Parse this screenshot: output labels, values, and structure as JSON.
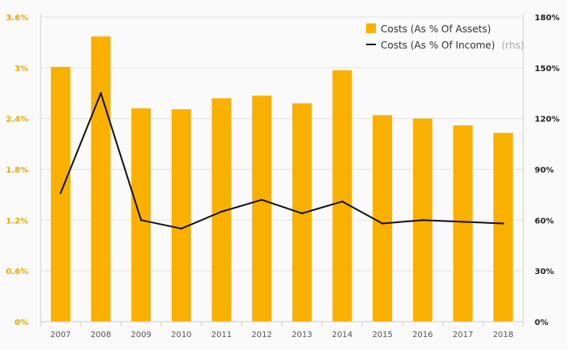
{
  "chart_data": {
    "type": "bar",
    "categories": [
      "2007",
      "2008",
      "2009",
      "2010",
      "2011",
      "2012",
      "2013",
      "2014",
      "2015",
      "2016",
      "2017",
      "2018"
    ],
    "series": [
      {
        "name": "Costs (As % Of Assets)",
        "type": "bar",
        "axis": "left",
        "color": "#f9b000",
        "values": [
          3.01,
          3.37,
          2.52,
          2.51,
          2.64,
          2.67,
          2.58,
          2.97,
          2.44,
          2.4,
          2.32,
          2.23
        ]
      },
      {
        "name": "Costs (As % Of Income)",
        "type": "line",
        "axis": "right",
        "color": "#111111",
        "values": [
          76,
          135,
          60,
          55,
          65,
          72,
          64,
          71,
          58,
          60,
          59,
          58
        ]
      }
    ],
    "left_axis": {
      "ticks": [
        "0%",
        "0.6%",
        "1.2%",
        "1.8%",
        "2.4%",
        "3%",
        "3.6%"
      ],
      "ylim": [
        0,
        3.6
      ]
    },
    "right_axis": {
      "ticks": [
        "0%",
        "30%",
        "60%",
        "90%",
        "120%",
        "150%",
        "180%"
      ],
      "ylim": [
        0,
        180
      ]
    },
    "legend": {
      "placement": "top-right",
      "rhs_note": "(rhs)"
    },
    "grid": true
  }
}
